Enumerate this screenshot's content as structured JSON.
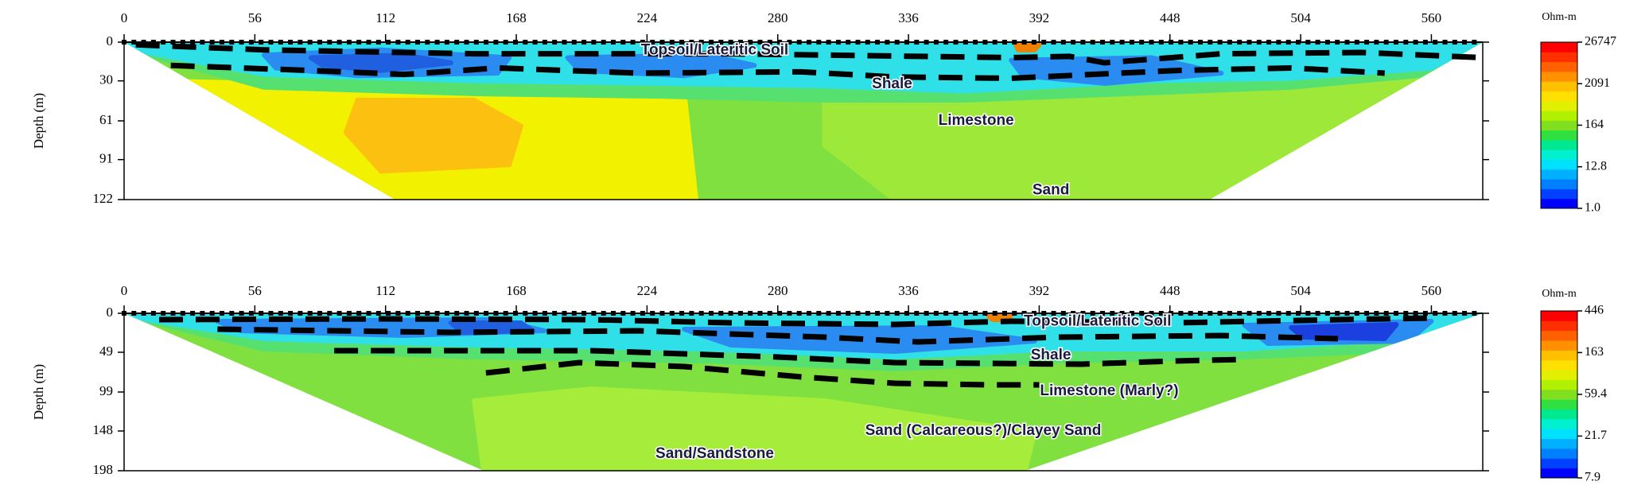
{
  "chart_data": [
    {
      "type": "resistivity-section",
      "y_label": "Depth (m)",
      "xlim": [
        0,
        582
      ],
      "xticks": [
        0,
        56,
        112,
        168,
        224,
        280,
        336,
        392,
        448,
        504,
        560
      ],
      "ylim": [
        122,
        0
      ],
      "yticks": [
        0,
        30,
        61,
        91,
        122
      ],
      "annotations": [
        "Topsoil/Lateritic Soil",
        "Shale",
        "Limestone",
        "Sand"
      ],
      "colorbar": {
        "title": "Ohm-m",
        "log": true,
        "ylim": [
          1,
          26747
        ],
        "ticks": [
          {
            "value": 1,
            "label": "1.0"
          },
          12.8,
          164,
          2091,
          26747
        ]
      }
    },
    {
      "type": "resistivity-section",
      "y_label": "Depth (m)",
      "xlim": [
        0,
        582
      ],
      "xticks": [
        0,
        56,
        112,
        168,
        224,
        280,
        336,
        392,
        448,
        504,
        560
      ],
      "ylim": [
        198,
        0
      ],
      "yticks": [
        0,
        49,
        99,
        148,
        198
      ],
      "annotations": [
        "Topsoil/Lateritic Soil",
        "Shale",
        "Limestone (Marly?)",
        "Sand (Calcareous?)/Clayey Sand",
        "Sand/Sandstone"
      ],
      "colorbar": {
        "title": "Ohm-m",
        "log": true,
        "ylim": [
          7.9,
          446
        ],
        "ticks": [
          7.9,
          21.7,
          59.4,
          163,
          446
        ]
      }
    }
  ]
}
